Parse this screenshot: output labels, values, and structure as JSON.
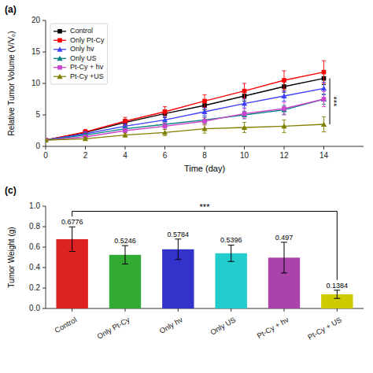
{
  "chart_data": [
    {
      "type": "line",
      "title": "(a)",
      "x_label": "Time (day)",
      "y_label": "Relative Tumor Volume (V/V₀)",
      "x": [
        0,
        2,
        4,
        6,
        8,
        10,
        12,
        14
      ],
      "xlim": [
        0,
        16
      ],
      "ylim": [
        0,
        20
      ],
      "xticks": [
        0,
        2,
        4,
        6,
        8,
        10,
        12,
        14
      ],
      "yticks": [
        0,
        5,
        10,
        15,
        20
      ],
      "grid": false,
      "legend": "top-left",
      "series": [
        {
          "name": "Control",
          "color": "#000000",
          "marker": "square",
          "values": [
            1.0,
            2.2,
            3.8,
            5.2,
            6.5,
            8.0,
            9.5,
            10.8
          ],
          "errors": [
            0.0,
            0.3,
            0.5,
            0.6,
            0.7,
            0.8,
            0.9,
            1.0
          ]
        },
        {
          "name": "Only Pt-Cy",
          "color": "#ff0000",
          "marker": "square",
          "values": [
            1.0,
            2.3,
            4.0,
            5.5,
            7.2,
            8.8,
            10.5,
            11.8
          ],
          "errors": [
            0.0,
            0.4,
            0.6,
            0.8,
            1.0,
            1.2,
            1.5,
            1.8
          ]
        },
        {
          "name": "Only hv",
          "color": "#4040ff",
          "marker": "triangle",
          "values": [
            1.0,
            2.0,
            3.2,
            4.2,
            5.5,
            6.8,
            8.0,
            9.2
          ],
          "errors": [
            0.0,
            0.3,
            0.4,
            0.5,
            0.6,
            0.7,
            0.8,
            1.0
          ]
        },
        {
          "name": "Only US",
          "color": "#008080",
          "marker": "triangle",
          "values": [
            1.0,
            1.8,
            2.8,
            3.5,
            4.2,
            5.0,
            5.8,
            7.5
          ],
          "errors": [
            0.0,
            0.2,
            0.3,
            0.4,
            0.5,
            0.6,
            0.7,
            0.8
          ]
        },
        {
          "name": "Pt-Cy + hv",
          "color": "#cc44cc",
          "marker": "square",
          "values": [
            1.0,
            1.5,
            2.5,
            3.2,
            4.0,
            5.2,
            6.0,
            7.5
          ],
          "errors": [
            0.0,
            0.2,
            0.3,
            0.5,
            0.6,
            0.8,
            1.0,
            1.2
          ]
        },
        {
          "name": "Pt-Cy +US",
          "color": "#808000",
          "marker": "triangle",
          "values": [
            1.0,
            1.2,
            1.8,
            2.2,
            2.8,
            3.0,
            3.2,
            3.5
          ],
          "errors": [
            0.0,
            0.2,
            0.3,
            0.5,
            0.7,
            0.8,
            1.0,
            1.2
          ]
        }
      ],
      "annotations": [
        {
          "text": "***",
          "x": 14.3,
          "y_from": 3.5,
          "y_to": 10.8
        }
      ]
    },
    {
      "type": "bar",
      "title": "(c)",
      "y_label": "Tumor Weight (g)",
      "categories": [
        "Control",
        "Only Pt-Cy",
        "Only hv",
        "Only US",
        "Pt-Cy + hv",
        "Pt-Cy + US"
      ],
      "values": [
        0.6776,
        0.5246,
        0.5784,
        0.5396,
        0.497,
        0.1384
      ],
      "errors": [
        0.12,
        0.09,
        0.1,
        0.08,
        0.15,
        0.04
      ],
      "colors": [
        "#dd2222",
        "#33aa33",
        "#3333cc",
        "#22cccc",
        "#aa44aa",
        "#cccc00"
      ],
      "data_labels": true,
      "grid": false,
      "ylim": [
        0.0,
        1.0
      ],
      "yticks": [
        {
          "value": 0.0,
          "label": "0.0"
        },
        0.2,
        0.4,
        0.6,
        0.8,
        {
          "value": 1.0,
          "label": "1.0"
        }
      ],
      "annotations": [
        {
          "text": "***",
          "from": "Control",
          "to": "Pt-Cy + US",
          "y": 0.95
        }
      ]
    }
  ]
}
